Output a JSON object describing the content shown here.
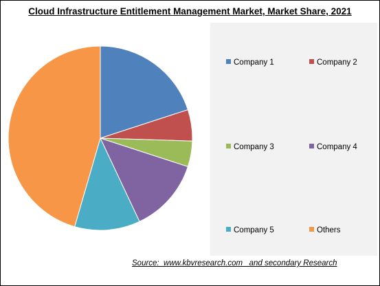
{
  "chart_data": {
    "type": "pie",
    "title": "Cloud Infrastructure Entitlement Management Market, Market Share, 2021",
    "categories": [
      "Company 1",
      "Company 2",
      "Company 3",
      "Company 4",
      "Company 5",
      "Others"
    ],
    "values": [
      20,
      5.5,
      4.5,
      13,
      11.5,
      45.5
    ],
    "colors": [
      "#4f81bd",
      "#c0504d",
      "#9bbb59",
      "#8064a2",
      "#4bacc6",
      "#f79646"
    ],
    "legend_position": "right",
    "start_angle_deg": 0,
    "direction": "clockwise"
  },
  "source": "Source:  www.kbvresearch.com   and secondary Research"
}
